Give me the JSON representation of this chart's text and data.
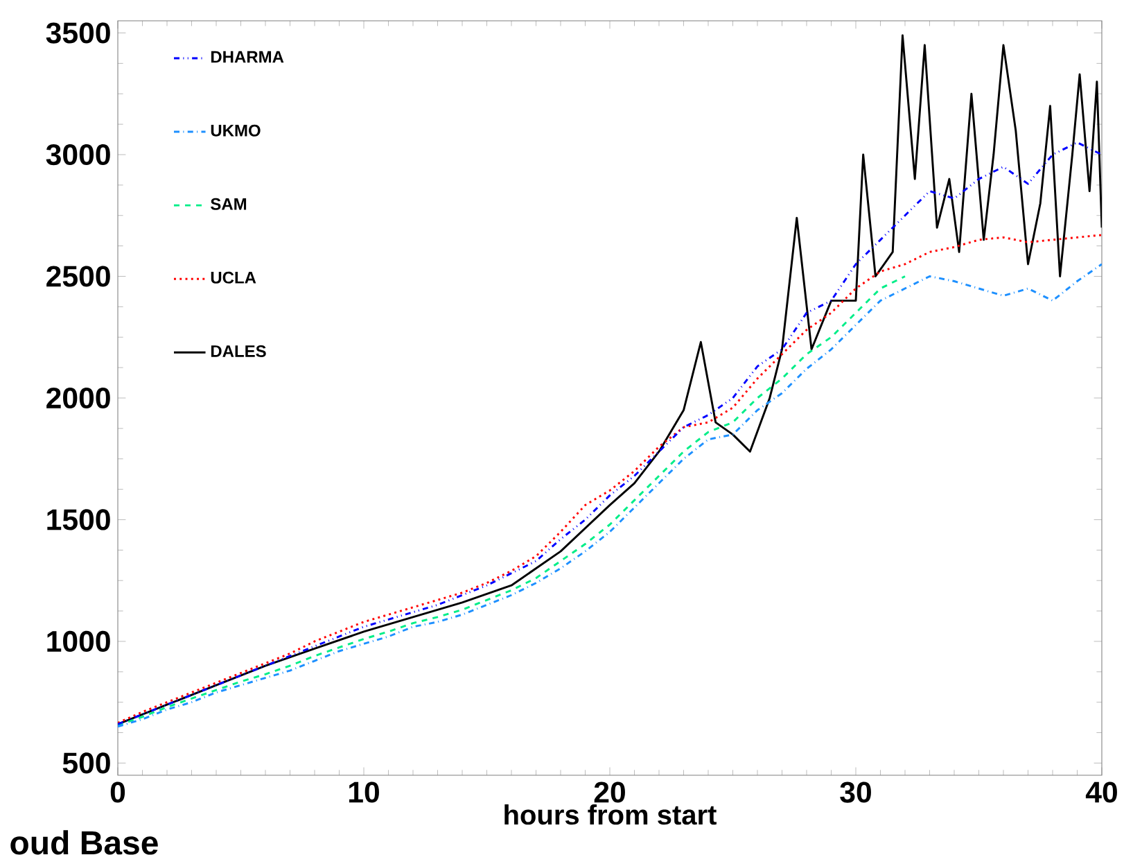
{
  "chart_data": {
    "type": "line",
    "xlabel": "hours from start",
    "xlim": [
      0,
      40
    ],
    "ylim": [
      450,
      3550
    ],
    "xticks": [
      0,
      10,
      20,
      30,
      40
    ],
    "yticks": [
      500,
      1000,
      1500,
      2000,
      2500,
      3000,
      3500
    ],
    "legend": "top left",
    "grid": false,
    "marker": "none",
    "annotations": [
      "oud Base"
    ],
    "x": [
      0,
      1,
      2,
      3,
      4,
      5,
      6,
      7,
      8,
      9,
      10,
      11,
      12,
      13,
      14,
      15,
      16,
      17,
      18,
      19,
      20,
      21,
      22,
      23,
      24,
      25,
      26,
      27,
      28,
      29,
      30,
      31,
      32,
      33,
      34,
      35,
      36,
      37,
      38,
      39,
      40
    ],
    "series": [
      {
        "name": "DHARMA",
        "color": "#0000ff",
        "line_style": "dashdotdotted",
        "values": [
          660,
          700,
          740,
          780,
          820,
          860,
          900,
          940,
          980,
          1020,
          1060,
          1090,
          1120,
          1150,
          1190,
          1230,
          1280,
          1330,
          1420,
          1500,
          1600,
          1680,
          1780,
          1880,
          1930,
          2000,
          2130,
          2200,
          2350,
          2400,
          2550,
          2650,
          2750,
          2850,
          2820,
          2900,
          2950,
          2880,
          3000,
          3050,
          3000
        ]
      },
      {
        "name": "UKMO",
        "color": "#1e90ff",
        "line_style": "dashdotted",
        "values": [
          650,
          680,
          720,
          750,
          790,
          820,
          850,
          880,
          920,
          960,
          990,
          1020,
          1060,
          1080,
          1110,
          1150,
          1190,
          1240,
          1300,
          1370,
          1450,
          1550,
          1650,
          1750,
          1830,
          1850,
          1950,
          2020,
          2120,
          2200,
          2300,
          2400,
          2450,
          2500,
          2480,
          2450,
          2420,
          2450,
          2400,
          2480,
          2550
        ]
      },
      {
        "name": "SAM",
        "color": "#00ee88",
        "line_style": "dashed",
        "values": [
          655,
          690,
          730,
          765,
          800,
          835,
          865,
          900,
          940,
          975,
          1010,
          1040,
          1075,
          1100,
          1130,
          1170,
          1210,
          1260,
          1330,
          1400,
          1480,
          1580,
          1680,
          1780,
          1860,
          1900,
          2000,
          2080,
          2180,
          2250,
          2350,
          2450,
          2500,
          null,
          null,
          null,
          null,
          null,
          null,
          null,
          null
        ]
      },
      {
        "name": "UCLA",
        "color": "#ff0000",
        "line_style": "dotted",
        "values": [
          665,
          710,
          750,
          790,
          830,
          870,
          910,
          950,
          1000,
          1040,
          1080,
          1110,
          1140,
          1170,
          1200,
          1240,
          1290,
          1350,
          1450,
          1560,
          1620,
          1700,
          1800,
          1880,
          1900,
          1960,
          2080,
          2180,
          2280,
          2350,
          2450,
          2520,
          2550,
          2600,
          2620,
          2650,
          2660,
          2640,
          2650,
          2660,
          2670
        ]
      },
      {
        "name": "DALES",
        "color": "#000000",
        "line_style": "solid",
        "x": [
          0,
          2,
          4,
          6,
          8,
          10,
          12,
          14,
          16,
          18,
          20,
          21,
          22,
          23,
          23.7,
          24.3,
          25,
          25.7,
          26.5,
          27,
          27.6,
          28.2,
          29,
          30,
          30.3,
          30.8,
          31.5,
          31.9,
          32.4,
          32.8,
          33.3,
          33.8,
          34.2,
          34.7,
          35.2,
          35.6,
          36,
          36.5,
          37,
          37.5,
          37.9,
          38.3,
          38.8,
          39.1,
          39.5,
          39.8,
          40
        ],
        "values": [
          660,
          740,
          820,
          900,
          970,
          1040,
          1100,
          1160,
          1230,
          1370,
          1560,
          1650,
          1780,
          1950,
          2230,
          1900,
          1850,
          1780,
          2000,
          2200,
          2740,
          2200,
          2400,
          2400,
          3000,
          2500,
          2600,
          3490,
          2900,
          3450,
          2700,
          2900,
          2600,
          3250,
          2650,
          3000,
          3450,
          3100,
          2550,
          2800,
          3200,
          2500,
          3000,
          3330,
          2850,
          3300,
          2700
        ]
      }
    ]
  }
}
